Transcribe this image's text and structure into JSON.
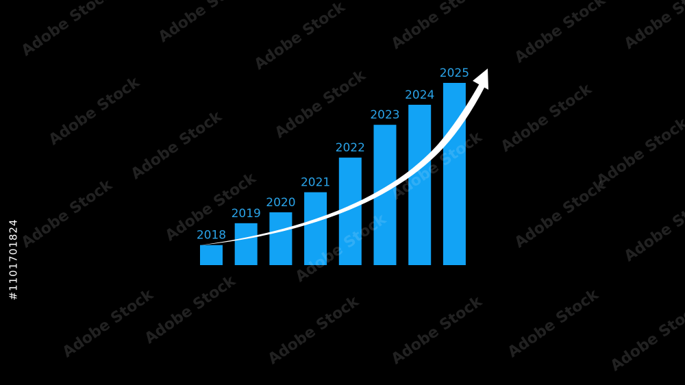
{
  "chart_data": {
    "type": "bar",
    "categories": [
      "2018",
      "2019",
      "2020",
      "2021",
      "2022",
      "2023",
      "2024",
      "2025"
    ],
    "values": [
      11,
      23,
      29,
      40,
      59,
      77,
      88,
      100
    ],
    "title": "",
    "xlabel": "",
    "ylabel": "",
    "ylim": [
      0,
      100
    ],
    "grid": false,
    "axes_visible": false,
    "category_labels_position": "above-bars",
    "trend_arrow": true,
    "colors": {
      "bar": "#12a3f5",
      "label": "#2aa3e8",
      "arrow": "#ffffff",
      "background": "#000000"
    }
  },
  "watermark": {
    "text": "Adobe Stock",
    "id": "#1101701824"
  }
}
